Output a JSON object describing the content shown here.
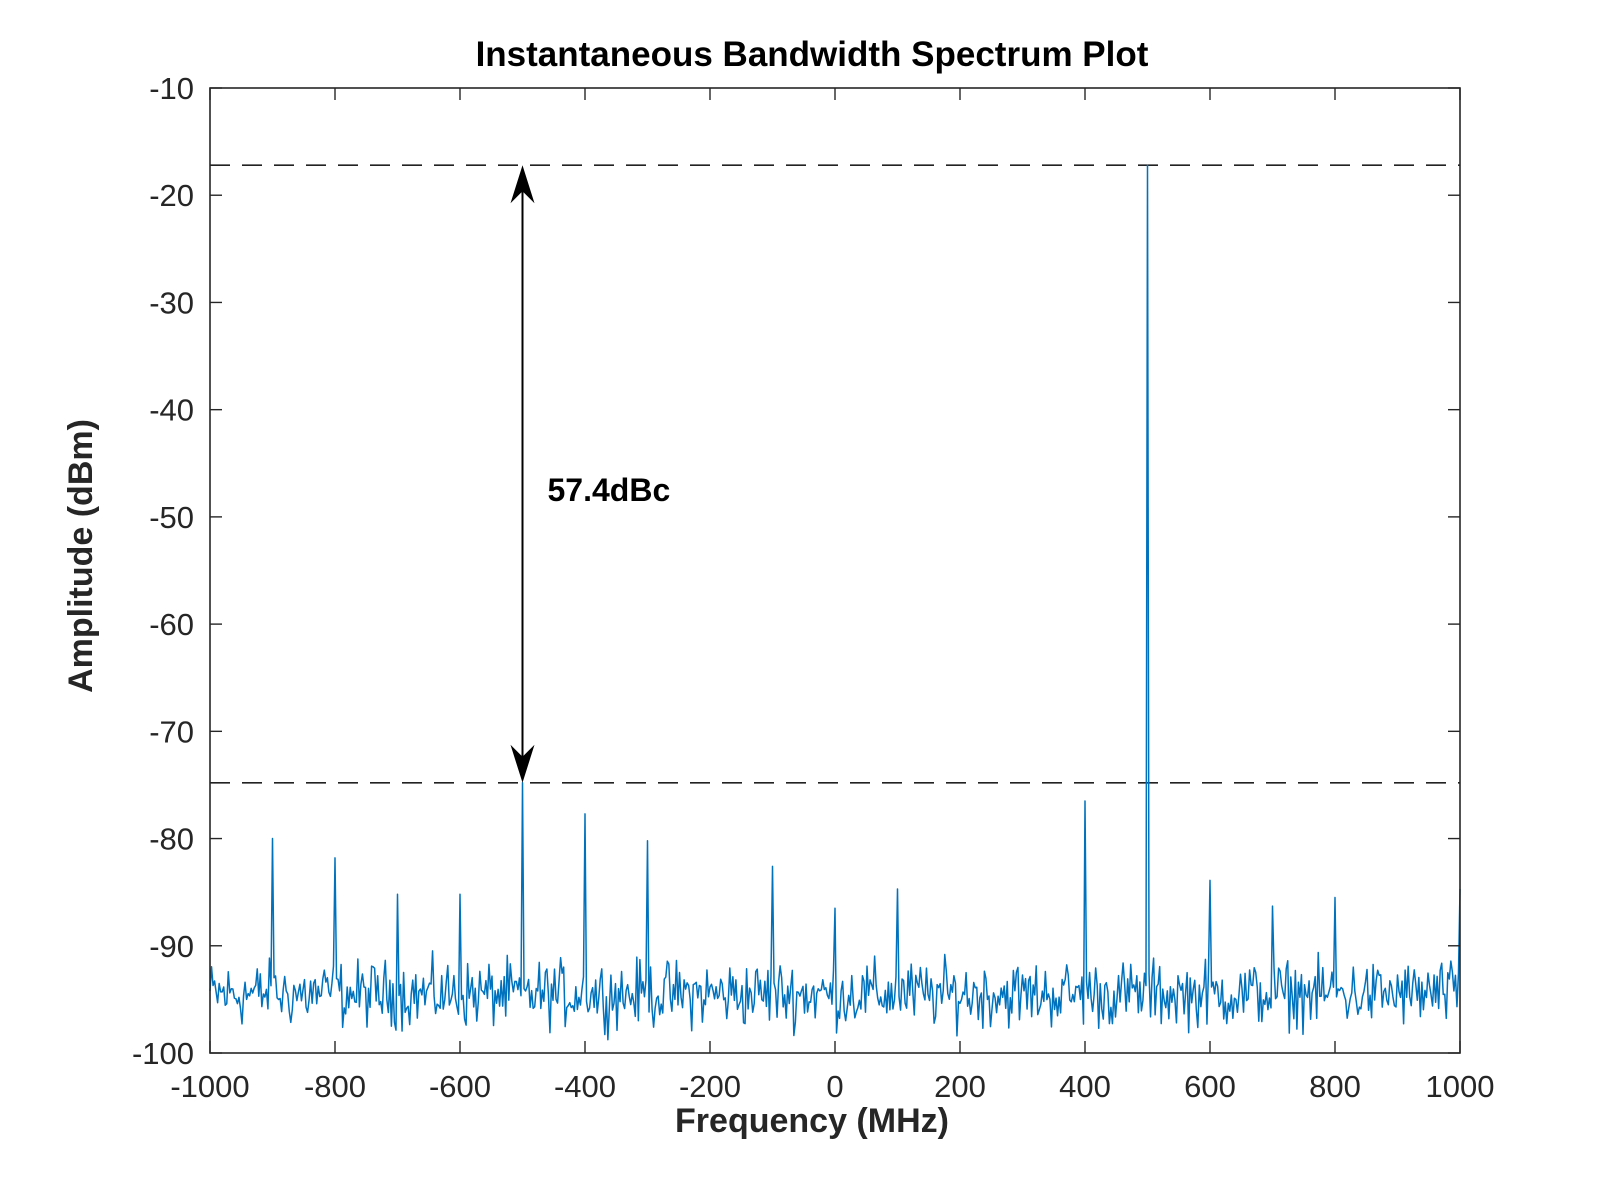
{
  "chart_data": {
    "type": "line",
    "title": "Instantaneous Bandwidth Spectrum Plot",
    "xlabel": "Frequency (MHz)",
    "ylabel": "Amplitude (dBm)",
    "xlim": [
      -1000,
      1000
    ],
    "ylim": [
      -100,
      -10
    ],
    "xticks": [
      -1000,
      -800,
      -600,
      -400,
      -200,
      0,
      200,
      400,
      600,
      800,
      1000
    ],
    "yticks": [
      -10,
      -20,
      -30,
      -40,
      -50,
      -60,
      -70,
      -80,
      -90,
      -100
    ],
    "grid": false,
    "legend": "none",
    "series_color": "#0072BD",
    "noise_floor_dbm": -94.5,
    "peaks": [
      {
        "x": -900,
        "y": -80.0
      },
      {
        "x": -800,
        "y": -81.8
      },
      {
        "x": -700,
        "y": -85.2
      },
      {
        "x": -600,
        "y": -85.2
      },
      {
        "x": -500,
        "y": -74.8
      },
      {
        "x": -400,
        "y": -77.7
      },
      {
        "x": -300,
        "y": -80.2
      },
      {
        "x": -100,
        "y": -82.6
      },
      {
        "x": 0,
        "y": -86.5
      },
      {
        "x": 100,
        "y": -84.7
      },
      {
        "x": 400,
        "y": -76.5
      },
      {
        "x": 500,
        "y": -17.2
      },
      {
        "x": 600,
        "y": -83.9
      },
      {
        "x": 700,
        "y": -86.3
      },
      {
        "x": 800,
        "y": -85.5
      },
      {
        "x": 1000,
        "y": -84.7
      }
    ],
    "reference_lines": [
      {
        "y": -17.2,
        "style": "dashed"
      },
      {
        "y": -74.8,
        "style": "dashed"
      }
    ],
    "annotation": {
      "text": "57.4dBc",
      "arrow_x": -500,
      "arrow_y_from": -17.2,
      "arrow_y_to": -74.8,
      "text_x": -460,
      "text_y": -47.5
    }
  }
}
